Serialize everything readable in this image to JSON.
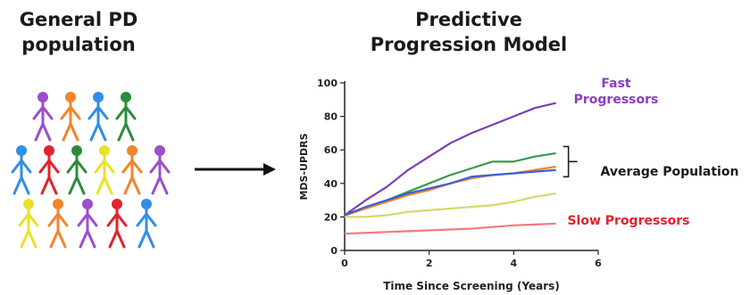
{
  "left_title": [
    "General PD",
    "population"
  ],
  "right_title": [
    "Predictive",
    "Progression Model"
  ],
  "people": [
    {
      "color": "#9b4fc9"
    },
    {
      "color": "#f2842a"
    },
    {
      "color": "#2f8fe6"
    },
    {
      "color": "#2e8b3e"
    },
    {
      "color": "#2f8fe6"
    },
    {
      "color": "#e2222b"
    },
    {
      "color": "#2e8b3e"
    },
    {
      "color": "#e8e22a"
    },
    {
      "color": "#f2842a"
    },
    {
      "color": "#9b4fc9"
    },
    {
      "color": "#e8e22a"
    },
    {
      "color": "#f2842a"
    },
    {
      "color": "#9b4fc9"
    },
    {
      "color": "#e2222b"
    },
    {
      "color": "#2f8fe6"
    }
  ],
  "chart_data": {
    "type": "line",
    "xlabel": "Time Since Screening (Years)",
    "ylabel": "MDS-UPDRS",
    "xlim": [
      0,
      6
    ],
    "ylim": [
      0,
      100
    ],
    "xticks": [
      0,
      2,
      4,
      6
    ],
    "yticks": [
      0,
      20,
      40,
      60,
      80,
      100
    ],
    "grid": false,
    "series": [
      {
        "color": "#7b3fb5",
        "x": [
          0,
          0.5,
          1,
          1.5,
          2,
          2.5,
          3,
          3.5,
          4,
          4.5,
          5
        ],
        "y": [
          21,
          30,
          38,
          48,
          56,
          64,
          70,
          75,
          80,
          85,
          88
        ]
      },
      {
        "color": "#3a9a4a",
        "x": [
          0,
          0.5,
          1,
          1.5,
          2,
          2.5,
          3,
          3.5,
          4,
          4.5,
          5
        ],
        "y": [
          21,
          25,
          30,
          35,
          40,
          45,
          49,
          53,
          53,
          56,
          58
        ]
      },
      {
        "color": "#f2842a",
        "x": [
          0,
          0.5,
          1,
          1.5,
          2,
          2.5,
          3,
          3.5,
          4,
          4.5,
          5
        ],
        "y": [
          21,
          25,
          29,
          33,
          36,
          40,
          43,
          45,
          46,
          48,
          50
        ]
      },
      {
        "color": "#3d5fd6",
        "x": [
          0,
          0.5,
          1,
          1.5,
          2,
          2.5,
          3,
          3.5,
          4,
          4.5,
          5
        ],
        "y": [
          21,
          26,
          30,
          34,
          37,
          40,
          44,
          45,
          46,
          47,
          48
        ]
      },
      {
        "color": "#d8d86a",
        "x": [
          0,
          0.5,
          1,
          1.5,
          2,
          2.5,
          3,
          3.5,
          4,
          4.5,
          5
        ],
        "y": [
          20,
          20,
          21,
          23,
          24,
          25,
          26,
          27,
          29,
          32,
          34
        ]
      },
      {
        "color": "#f4797b",
        "x": [
          0,
          0.5,
          1,
          1.5,
          2,
          2.5,
          3,
          3.5,
          4,
          4.5,
          5
        ],
        "y": [
          10,
          10.5,
          11,
          11.5,
          12,
          12.5,
          13,
          14,
          15,
          15.5,
          16
        ]
      }
    ],
    "annotations": [
      {
        "lines": [
          "Fast",
          "Progressors"
        ],
        "color": "#8a3dbf"
      },
      {
        "lines": [
          "Average Population"
        ],
        "color": "#1a1a1a"
      },
      {
        "lines": [
          "Slow Progressors"
        ],
        "color": "#e2222b"
      }
    ]
  }
}
